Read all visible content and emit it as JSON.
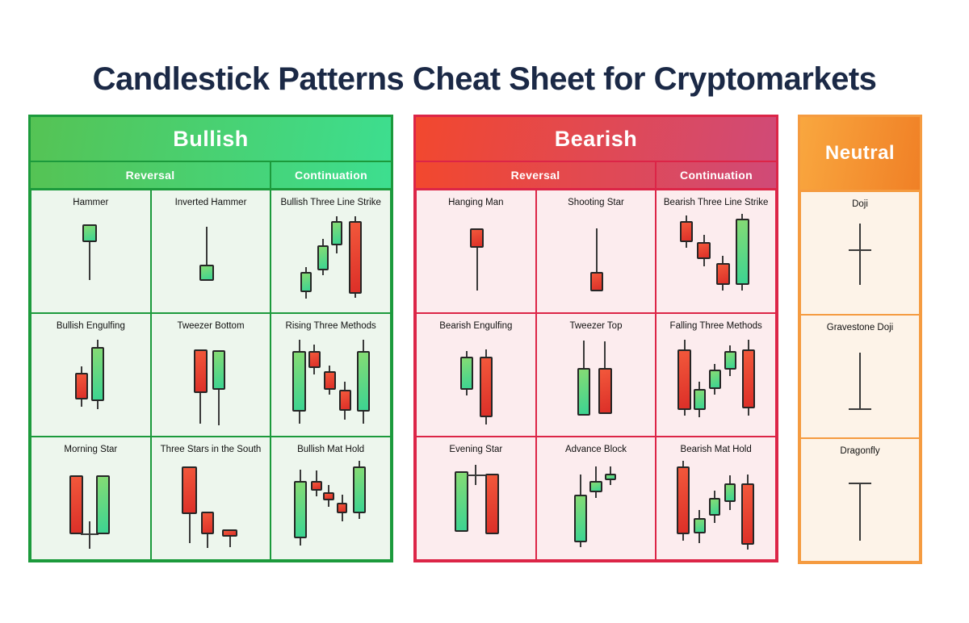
{
  "title": "Candlestick Patterns Cheat Sheet for Cryptomarkets",
  "colors": {
    "title_color": "#1b2946",
    "header_text": "#ffffff",
    "label_color": "#101010",
    "wick_color": "#3a3a3a",
    "outline_color": "#262626",
    "candle_green_light": "#86db74",
    "candle_green_dark": "#3bd492",
    "candle_red_light": "#f2583b",
    "candle_red_dark": "#dc2f28"
  },
  "sections": [
    {
      "id": "bullish",
      "label": "Bullish",
      "subheaders": [
        "Reversal",
        "Continuation"
      ],
      "colors": {
        "border": "#1c9a3c",
        "header_from": "#55c354",
        "header_to": "#3dde8f",
        "cell_bg": "#edf6ed"
      },
      "cells": [
        {
          "name": "Hammer",
          "candles": [
            {
              "t": "c",
              "c": "g",
              "x": 49,
              "w": 14,
              "bt": 13,
              "bb": 31,
              "wb": 71
            }
          ]
        },
        {
          "name": "Inverted Hammer",
          "candles": [
            {
              "t": "c",
              "c": "g",
              "x": 46,
              "w": 14,
              "bt": 55,
              "bb": 72,
              "wt": 15
            }
          ]
        },
        {
          "name": "Bullish Three Line Strike",
          "candles": [
            {
              "t": "c",
              "c": "g",
              "x": 26,
              "w": 11,
              "bt": 63,
              "bb": 84,
              "wt": 58,
              "wb": 91
            },
            {
              "t": "c",
              "c": "g",
              "x": 42,
              "w": 11,
              "bt": 35,
              "bb": 61,
              "wt": 28,
              "wb": 66
            },
            {
              "t": "c",
              "c": "g",
              "x": 56,
              "w": 11,
              "bt": 9,
              "bb": 35,
              "wt": 4,
              "wb": 43
            },
            {
              "t": "c",
              "c": "r",
              "x": 74,
              "w": 13,
              "bt": 9,
              "bb": 86,
              "wt": 4,
              "wb": 90
            }
          ]
        },
        {
          "name": "Bullish Engulfing",
          "candles": [
            {
              "t": "c",
              "c": "r",
              "x": 41,
              "w": 12,
              "bt": 39,
              "bb": 67,
              "wt": 32,
              "wb": 75
            },
            {
              "t": "c",
              "c": "g",
              "x": 57,
              "w": 13,
              "bt": 12,
              "bb": 69,
              "wt": 4,
              "wb": 77
            }
          ]
        },
        {
          "name": "Tweezer Bottom",
          "candles": [
            {
              "t": "c",
              "c": "r",
              "x": 40,
              "w": 13,
              "bt": 14,
              "bb": 60,
              "wb": 92
            },
            {
              "t": "c",
              "c": "g",
              "x": 58,
              "w": 13,
              "bt": 15,
              "bb": 57,
              "wb": 94
            }
          ]
        },
        {
          "name": "Rising Three Methods",
          "candles": [
            {
              "t": "c",
              "c": "g",
              "x": 19,
              "w": 13,
              "bt": 16,
              "bb": 80,
              "wt": 4,
              "wb": 92
            },
            {
              "t": "c",
              "c": "r",
              "x": 34,
              "w": 12,
              "bt": 16,
              "bb": 34,
              "wt": 9,
              "wb": 41
            },
            {
              "t": "c",
              "c": "r",
              "x": 49,
              "w": 12,
              "bt": 37,
              "bb": 57,
              "wt": 31,
              "wb": 62
            },
            {
              "t": "c",
              "c": "r",
              "x": 64,
              "w": 12,
              "bt": 57,
              "bb": 79,
              "wt": 48,
              "wb": 88
            },
            {
              "t": "c",
              "c": "g",
              "x": 82,
              "w": 13,
              "bt": 16,
              "bb": 80,
              "wt": 4,
              "wb": 92
            }
          ]
        },
        {
          "name": "Morning Star",
          "candles": [
            {
              "t": "c",
              "c": "r",
              "x": 36,
              "w": 13,
              "bt": 17,
              "bb": 79
            },
            {
              "t": "x",
              "x": 49,
              "vt": 65,
              "vb": 94,
              "hy": 79,
              "hw": 9
            },
            {
              "t": "c",
              "c": "g",
              "x": 62,
              "w": 13,
              "bt": 17,
              "bb": 79
            }
          ]
        },
        {
          "name": "Three Stars in the South",
          "candles": [
            {
              "t": "c",
              "c": "r",
              "x": 29,
              "w": 15,
              "bt": 8,
              "bb": 58,
              "wb": 88
            },
            {
              "t": "c",
              "c": "r",
              "x": 47,
              "w": 13,
              "bt": 55,
              "bb": 79,
              "wb": 93
            },
            {
              "t": "c",
              "c": "r",
              "x": 69,
              "w": 15,
              "bt": 74,
              "bb": 81,
              "wb": 92
            }
          ]
        },
        {
          "name": "Bullish Mat Hold",
          "candles": [
            {
              "t": "c",
              "c": "g",
              "x": 20,
              "w": 13,
              "bt": 23,
              "bb": 83,
              "wt": 11,
              "wb": 91
            },
            {
              "t": "c",
              "c": "r",
              "x": 36,
              "w": 11,
              "bt": 23,
              "bb": 33,
              "wt": 12,
              "wb": 39
            },
            {
              "t": "c",
              "c": "r",
              "x": 48,
              "w": 11,
              "bt": 35,
              "bb": 43,
              "wt": 27,
              "wb": 50
            },
            {
              "t": "c",
              "c": "r",
              "x": 61,
              "w": 11,
              "bt": 46,
              "bb": 57,
              "wt": 37,
              "wb": 65
            },
            {
              "t": "c",
              "c": "g",
              "x": 78,
              "w": 13,
              "bt": 8,
              "bb": 57,
              "wt": 2,
              "wb": 63
            }
          ]
        }
      ]
    },
    {
      "id": "bearish",
      "label": "Bearish",
      "subheaders": [
        "Reversal",
        "Continuation"
      ],
      "colors": {
        "border": "#dc2547",
        "header_from": "#f2482e",
        "header_to": "#d04a77",
        "cell_bg": "#fcecee"
      },
      "cells": [
        {
          "name": "Hanging Man",
          "candles": [
            {
              "t": "c",
              "c": "r",
              "x": 51,
              "w": 13,
              "bt": 17,
              "bb": 37,
              "wb": 82
            }
          ]
        },
        {
          "name": "Shooting Star",
          "candles": [
            {
              "t": "c",
              "c": "r",
              "x": 51,
              "w": 13,
              "bt": 63,
              "bb": 83,
              "wt": 17
            }
          ]
        },
        {
          "name": "Bearish Three Line Strike",
          "candles": [
            {
              "t": "c",
              "c": "r",
              "x": 21,
              "w": 13,
              "bt": 9,
              "bb": 31,
              "wt": 3,
              "wb": 37
            },
            {
              "t": "c",
              "c": "r",
              "x": 38,
              "w": 13,
              "bt": 31,
              "bb": 49,
              "wt": 24,
              "wb": 57
            },
            {
              "t": "c",
              "c": "r",
              "x": 57,
              "w": 13,
              "bt": 53,
              "bb": 76,
              "wt": 46,
              "wb": 82
            },
            {
              "t": "c",
              "c": "g",
              "x": 76,
              "w": 13,
              "bt": 7,
              "bb": 76,
              "wt": 2,
              "wb": 82
            }
          ]
        },
        {
          "name": "Bearish Engulfing",
          "candles": [
            {
              "t": "c",
              "c": "g",
              "x": 41,
              "w": 12,
              "bt": 22,
              "bb": 57,
              "wt": 16,
              "wb": 63
            },
            {
              "t": "c",
              "c": "r",
              "x": 60,
              "w": 13,
              "bt": 22,
              "bb": 86,
              "wt": 14,
              "wb": 93
            }
          ]
        },
        {
          "name": "Tweezer Top",
          "candles": [
            {
              "t": "c",
              "c": "g",
              "x": 38,
              "w": 13,
              "bt": 34,
              "bb": 84,
              "wt": 5
            },
            {
              "t": "c",
              "c": "r",
              "x": 59,
              "w": 13,
              "bt": 34,
              "bb": 82,
              "wt": 6
            }
          ]
        },
        {
          "name": "Falling Three Methods",
          "candles": [
            {
              "t": "c",
              "c": "r",
              "x": 19,
              "w": 13,
              "bt": 14,
              "bb": 78,
              "wt": 4,
              "wb": 84
            },
            {
              "t": "c",
              "c": "g",
              "x": 34,
              "w": 12,
              "bt": 56,
              "bb": 78,
              "wt": 48,
              "wb": 86
            },
            {
              "t": "c",
              "c": "g",
              "x": 49,
              "w": 12,
              "bt": 36,
              "bb": 56,
              "wt": 30,
              "wb": 62
            },
            {
              "t": "c",
              "c": "g",
              "x": 64,
              "w": 12,
              "bt": 16,
              "bb": 36,
              "wt": 10,
              "wb": 42
            },
            {
              "t": "c",
              "c": "r",
              "x": 82,
              "w": 13,
              "bt": 14,
              "bb": 76,
              "wt": 4,
              "wb": 84
            }
          ]
        },
        {
          "name": "Evening Star",
          "candles": [
            {
              "t": "c",
              "c": "g",
              "x": 36,
              "w": 13,
              "bt": 13,
              "bb": 76
            },
            {
              "t": "x",
              "x": 50,
              "vt": 6,
              "vb": 27,
              "hy": 17,
              "hw": 9
            },
            {
              "t": "c",
              "c": "r",
              "x": 66,
              "w": 13,
              "bt": 15,
              "bb": 79
            }
          ]
        },
        {
          "name": "Advance Block",
          "candles": [
            {
              "t": "c",
              "c": "g",
              "x": 35,
              "w": 13,
              "bt": 37,
              "bb": 87,
              "wt": 16,
              "wb": 92
            },
            {
              "t": "c",
              "c": "g",
              "x": 50,
              "w": 12,
              "bt": 23,
              "bb": 35,
              "wt": 8,
              "wb": 41
            },
            {
              "t": "c",
              "c": "g",
              "x": 64,
              "w": 11,
              "bt": 15,
              "bb": 22,
              "wt": 8,
              "wb": 27
            }
          ]
        },
        {
          "name": "Bearish Mat Hold",
          "candles": [
            {
              "t": "c",
              "c": "r",
              "x": 18,
              "w": 13,
              "bt": 8,
              "bb": 79,
              "wt": 2,
              "wb": 86
            },
            {
              "t": "c",
              "c": "g",
              "x": 34,
              "w": 12,
              "bt": 62,
              "bb": 78,
              "wt": 53,
              "wb": 88
            },
            {
              "t": "c",
              "c": "g",
              "x": 49,
              "w": 11,
              "bt": 41,
              "bb": 59,
              "wt": 33,
              "wb": 67
            },
            {
              "t": "c",
              "c": "g",
              "x": 64,
              "w": 11,
              "bt": 25,
              "bb": 45,
              "wt": 17,
              "wb": 53
            },
            {
              "t": "c",
              "c": "r",
              "x": 81,
              "w": 13,
              "bt": 25,
              "bb": 90,
              "wt": 16,
              "wb": 95
            }
          ]
        }
      ]
    },
    {
      "id": "neutral",
      "label": "Neutral",
      "subheaders": null,
      "colors": {
        "border": "#f59b40",
        "header_from": "#f9a73f",
        "header_to": "#f08026",
        "cell_bg": "#fdf3e8"
      },
      "cells": [
        {
          "name": "Doji",
          "candles": [
            {
              "t": "x",
              "x": 50,
              "vt": 10,
              "vb": 75,
              "hy": 38,
              "hw": 11
            }
          ]
        },
        {
          "name": "Gravestone Doji",
          "candles": [
            {
              "t": "x",
              "x": 50,
              "vt": 16,
              "vb": 75,
              "hy": 75,
              "hw": 11
            }
          ]
        },
        {
          "name": "Dragonfly",
          "candles": [
            {
              "t": "x",
              "x": 50,
              "vt": 24,
              "vb": 84,
              "hy": 24,
              "hw": 11
            }
          ]
        }
      ]
    }
  ]
}
